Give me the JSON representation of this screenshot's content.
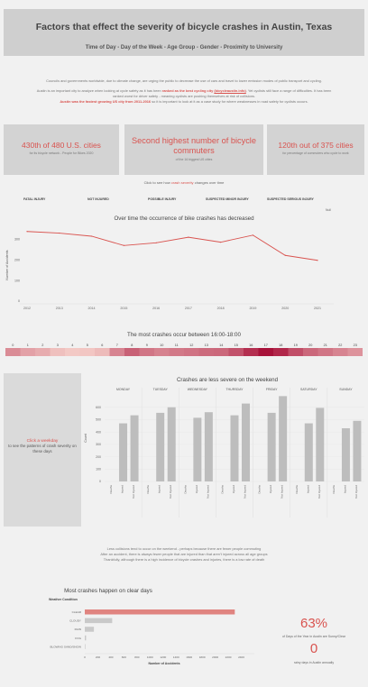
{
  "header": {
    "title": "Factors that effect the severity of bicycle crashes in Austin, Texas",
    "subtitle": "Time of Day - Day of the Week - Age Group - Gender - Proximity to University"
  },
  "intro": {
    "line1": "Councils and governments worldwide, due to climate change, are urging the public to decrease the use of cars and travel to lower emission modes of public transport and cycling.",
    "line2a": "Austin is an important city to analyze when looking at cycle safety as it has been",
    "line2red": "ranked as the best cycling city",
    "line2link": "(bicycleaustin.info)",
    "line2b": ". Yet cyclists still face a range of difficulties. It has been",
    "line3": "ranked worst for driver safety - meaning cyclists are pushing themselves at risk of collisions.",
    "line4red": "Austin was the fastest growing US city from 2011-2016",
    "line4b": "so it is important to look at it as a case study for where weaknesses in road safety for cyclists occurs."
  },
  "cards": [
    {
      "big": "430th of 480 U.S. cities",
      "small": "for its bicycle network - People for Bikes 2020"
    },
    {
      "big": "Second highest number of bicycle commuters",
      "small": "of the 16 biggest US cities"
    },
    {
      "big": "120th out of 375 cities",
      "small": "for percentage of commuters who cycle to work"
    }
  ],
  "filter_hint": {
    "pre": "Click to see how",
    "red": "crash severity",
    "post": "changes over time"
  },
  "severity_labels": [
    "FATAL INJURY",
    "NOT INJURED",
    "POSSIBLE INJURY",
    "SUSPECTED MINOR INJURY",
    "SUSPECTED SERIOUS INJURY"
  ],
  "null_label": "Null",
  "chart_data": [
    {
      "type": "line",
      "title": "Over time the occurrence of bike crashes has decreased",
      "ylabel": "Number of Accidents",
      "xlabel": "",
      "x": [
        "2012",
        "2013",
        "2014",
        "2015",
        "2016",
        "2017",
        "2018",
        "2019",
        "2020",
        "2021"
      ],
      "values": [
        338,
        330,
        315,
        270,
        283,
        310,
        286,
        320,
        222,
        198
      ],
      "ylim": [
        0,
        350
      ],
      "yticks": [
        "0",
        "100",
        "200",
        "300"
      ],
      "color": "#d9534f"
    },
    {
      "type": "heatmap",
      "title": "The most crashes occur between 16:00-18:00",
      "categories": [
        "0",
        "1",
        "2",
        "3",
        "4",
        "5",
        "6",
        "7",
        "8",
        "9",
        "10",
        "11",
        "12",
        "13",
        "14",
        "15",
        "16",
        "17",
        "18",
        "19",
        "20",
        "21",
        "22",
        "23"
      ],
      "values": [
        55,
        40,
        32,
        18,
        12,
        14,
        22,
        60,
        85,
        70,
        62,
        68,
        72,
        78,
        80,
        95,
        120,
        140,
        125,
        98,
        80,
        70,
        60,
        50
      ],
      "color_low": "#f3c9c5",
      "color_high": "#a8123a"
    },
    {
      "type": "bar",
      "title": "Crashes are less severe on the weekend",
      "ylabel": "Count",
      "ylim": [
        0,
        700
      ],
      "yticks": [
        "0",
        "100",
        "200",
        "300",
        "400",
        "500",
        "600"
      ],
      "days": [
        "MONDAY",
        "TUESDAY",
        "WEDNESDAY",
        "THURSDAY",
        "FRIDAY",
        "SATURDAY",
        "SUNDAY"
      ],
      "bar_labels": [
        "Deaths",
        "Injured",
        "Not Injured"
      ],
      "values": [
        [
          0,
          470,
          535
        ],
        [
          0,
          555,
          600
        ],
        [
          0,
          515,
          560
        ],
        [
          0,
          535,
          630
        ],
        [
          0,
          555,
          690
        ],
        [
          0,
          470,
          595
        ],
        [
          0,
          430,
          490
        ]
      ],
      "color": "#bdbdbd"
    },
    {
      "type": "bar",
      "orientation": "horizontal",
      "title": "Most crashes happen on clear days",
      "ylabel": "Weather Condition",
      "xlabel": "Number of Accidents",
      "categories": [
        "CLEAR",
        "CLOUDY",
        "RAIN",
        "FOG",
        "BLOWING SAND/SNOW"
      ],
      "values": [
        2300,
        420,
        140,
        20,
        5
      ],
      "xlim": [
        0,
        2600
      ],
      "xticks": [
        "0",
        "200",
        "400",
        "600",
        "800",
        "1000",
        "1200",
        "1400",
        "1600",
        "1800",
        "2000",
        "2200",
        "2400"
      ],
      "highlight_color": "#e08480",
      "color": "#c9c9c9"
    }
  ],
  "click_box": {
    "red": "Click a weekday",
    "rest": "to see the patterns of crash severity on these days"
  },
  "commute_note": {
    "l1": "Less collisions tend to occur on the weekend - perhaps because there are fewer people commuting",
    "l2": "After an accident, there is always fewer people that are injured than that aren't injured across all age groups",
    "l3": "Thankfully, although there is a high incidence of bicycle crashes and injuries, there is a low rate of death"
  },
  "stats": {
    "pct": "63%",
    "pct_caption": "of Days of the Year in Austin are Sunny/Clear",
    "zero": "0",
    "zero_caption": "rainy days in Austin annually"
  }
}
